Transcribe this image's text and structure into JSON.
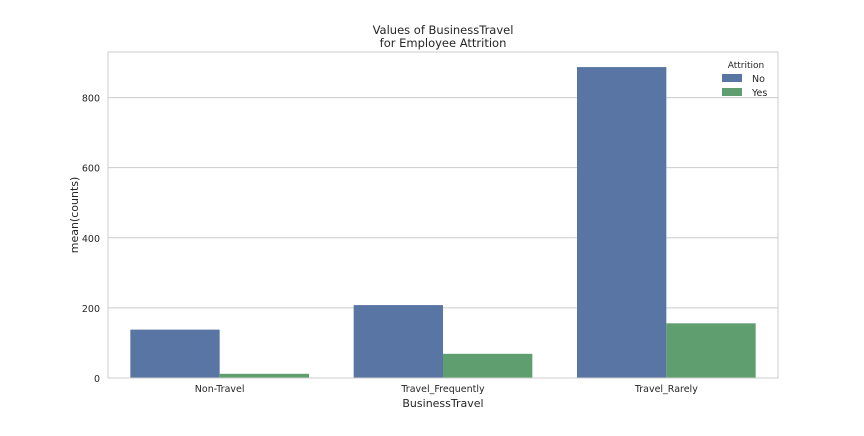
{
  "chart_data": {
    "type": "bar",
    "title": "Values of BusinessTravel\nfor Employee Attrition",
    "xlabel": "BusinessTravel",
    "ylabel": "mean(counts)",
    "categories": [
      "Non-Travel",
      "Travel_Frequently",
      "Travel_Rarely"
    ],
    "series": [
      {
        "name": "No",
        "values": [
          138,
          208,
          887
        ],
        "color": "#5975a4"
      },
      {
        "name": "Yes",
        "values": [
          12,
          69,
          156
        ],
        "color": "#5f9e6e"
      }
    ],
    "ylim": [
      0,
      930
    ],
    "yticks": [
      0,
      200,
      400,
      600,
      800
    ],
    "grid": true,
    "legend": {
      "title": "Attrition",
      "placement": "top-right"
    }
  }
}
